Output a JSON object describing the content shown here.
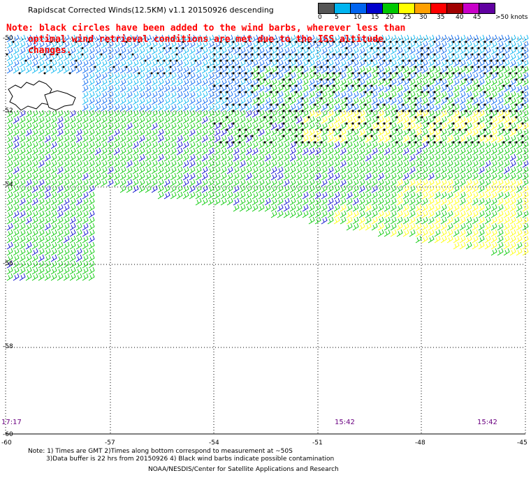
{
  "header": {
    "title": "Rapidscat Corrected Winds(12.5KM) v1.1 20150926 descending"
  },
  "note": {
    "line1": "Note: black circles have been added to the wind barbs, wherever less than",
    "line2": "optimal wind retrieval conditions are met due to the ISS altitude changes."
  },
  "colorbar": {
    "labels": [
      "0",
      "5",
      "10",
      "15",
      "20",
      "25",
      "30",
      "35",
      "40",
      "45",
      ">50 knots"
    ],
    "colors": [
      "#555555",
      "#00b4f0",
      "#0064f0",
      "#0000cc",
      "#00c800",
      "#ffff00",
      "#ffa000",
      "#ff0000",
      "#a00000",
      "#c800c8",
      "#6000a0"
    ]
  },
  "axes": {
    "y_labels": [
      "-50",
      "-52",
      "-54",
      "-56",
      "-58",
      "-60"
    ],
    "x_labels": [
      "-60",
      "-57",
      "-54",
      "-51",
      "-48",
      "-45"
    ]
  },
  "times": [
    "17:17",
    "15:42",
    "15:42"
  ],
  "footer": {
    "line1": "Note: 1) Times are GMT 2)Times along bottom correspond to measurement at ~50S",
    "line2": "3)Data buffer is 22 hrs from 20150926 4) Black wind barbs indicate possible contamination",
    "line3": "NOAA/NESDIS/Center for Satellite Applications and Research"
  }
}
